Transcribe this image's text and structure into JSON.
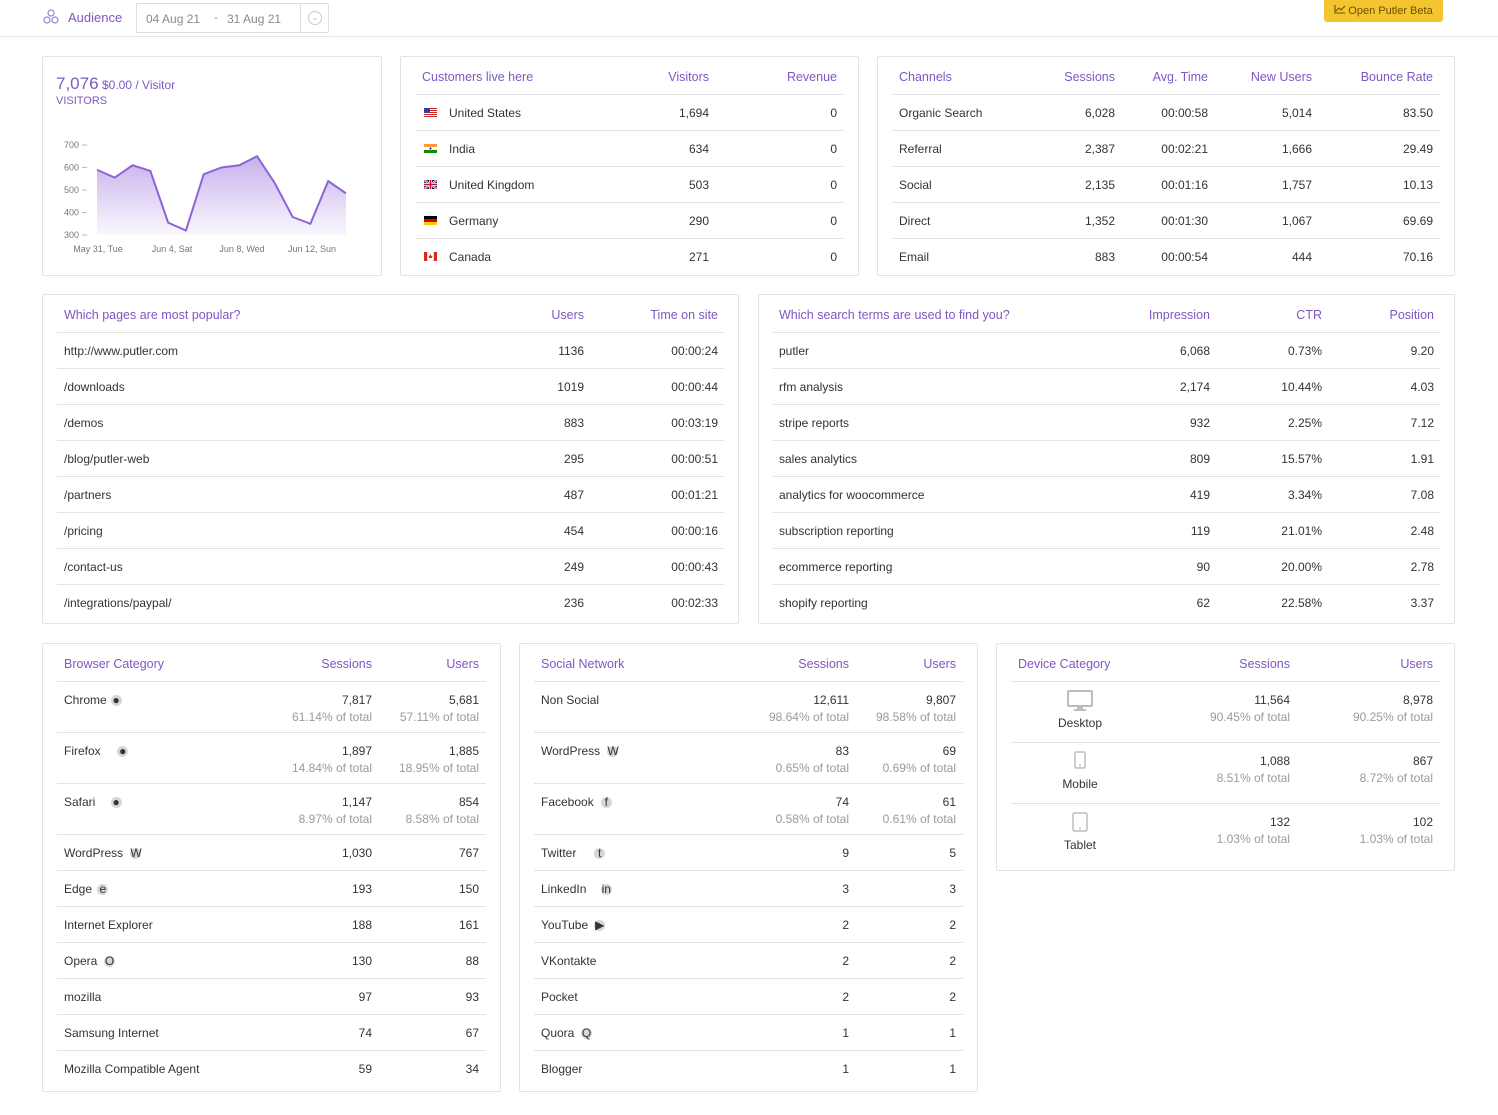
{
  "header": {
    "title": "Audience",
    "date_from": "04 Aug 21",
    "date_sep": "-",
    "date_to": "31 Aug 21",
    "beta_button": "Open Putler Beta"
  },
  "visitors": {
    "count": "7,076",
    "per_visitor": "$0.00 / Visitor",
    "label": "VISITORS",
    "y_ticks": [
      "700",
      "600",
      "500",
      "400",
      "300"
    ],
    "x_ticks": [
      "May 31, Tue",
      "Jun 4, Sat",
      "Jun 8, Wed",
      "Jun 12, Sun"
    ]
  },
  "chart_data": {
    "type": "area",
    "title": "",
    "ylim": [
      300,
      700
    ],
    "x_tick_labels": [
      "May 31, Tue",
      "Jun 4, Sat",
      "Jun 8, Wed",
      "Jun 12, Sun"
    ],
    "values": [
      590,
      555,
      610,
      585,
      355,
      320,
      570,
      600,
      610,
      650,
      530,
      380,
      350,
      540,
      485
    ],
    "color": "#8e63d8"
  },
  "countries": {
    "headers": [
      "Customers live here",
      "Visitors",
      "Revenue"
    ],
    "rows": [
      {
        "name": "United States",
        "visitors": "1,694",
        "revenue": "0",
        "flag": "us"
      },
      {
        "name": "India",
        "visitors": "634",
        "revenue": "0",
        "flag": "in"
      },
      {
        "name": "United Kingdom",
        "visitors": "503",
        "revenue": "0",
        "flag": "gb"
      },
      {
        "name": "Germany",
        "visitors": "290",
        "revenue": "0",
        "flag": "de"
      },
      {
        "name": "Canada",
        "visitors": "271",
        "revenue": "0",
        "flag": "ca"
      }
    ]
  },
  "channels": {
    "headers": [
      "Channels",
      "Sessions",
      "Avg. Time",
      "New Users",
      "Bounce Rate"
    ],
    "rows": [
      [
        "Organic Search",
        "6,028",
        "00:00:58",
        "5,014",
        "83.50"
      ],
      [
        "Referral",
        "2,387",
        "00:02:21",
        "1,666",
        "29.49"
      ],
      [
        "Social",
        "2,135",
        "00:01:16",
        "1,757",
        "10.13"
      ],
      [
        "Direct",
        "1,352",
        "00:01:30",
        "1,067",
        "69.69"
      ],
      [
        "Email",
        "883",
        "00:00:54",
        "444",
        "70.16"
      ]
    ]
  },
  "pages": {
    "headers": [
      "Which pages are most popular?",
      "Users",
      "Time on site"
    ],
    "rows": [
      [
        "http://www.putler.com",
        "1136",
        "00:00:24"
      ],
      [
        "/downloads",
        "1019",
        "00:00:44"
      ],
      [
        "/demos",
        "883",
        "00:03:19"
      ],
      [
        "/blog/putler-web",
        "295",
        "00:00:51"
      ],
      [
        "/partners",
        "487",
        "00:01:21"
      ],
      [
        "/pricing",
        "454",
        "00:00:16"
      ],
      [
        "/contact-us",
        "249",
        "00:00:43"
      ],
      [
        "/integrations/paypal/",
        "236",
        "00:02:33"
      ]
    ]
  },
  "search": {
    "headers": [
      "Which search terms are used to find you?",
      "Impression",
      "CTR",
      "Position"
    ],
    "rows": [
      [
        "putler",
        "6,068",
        "0.73%",
        "9.20"
      ],
      [
        "rfm analysis",
        "2,174",
        "10.44%",
        "4.03"
      ],
      [
        "stripe reports",
        "932",
        "2.25%",
        "7.12"
      ],
      [
        "sales analytics",
        "809",
        "15.57%",
        "1.91"
      ],
      [
        "analytics for woocommerce",
        "419",
        "3.34%",
        "7.08"
      ],
      [
        "subscription reporting",
        "119",
        "21.01%",
        "2.48"
      ],
      [
        "ecommerce reporting",
        "90",
        "20.00%",
        "2.78"
      ],
      [
        "shopify reporting",
        "62",
        "22.58%",
        "3.37"
      ]
    ]
  },
  "browsers": {
    "headers": [
      "Browser Category",
      "Sessions",
      "Users"
    ],
    "rows": [
      {
        "name": "Chrome",
        "icon": "chrome-icon",
        "sessions": "7,817",
        "users": "5,681",
        "sp": "61.14% of total",
        "up": "57.11% of total"
      },
      {
        "name": "Firefox",
        "icon": "firefox-icon",
        "sessions": "1,897",
        "users": "1,885",
        "sp": "14.84% of total",
        "up": "18.95% of total"
      },
      {
        "name": "Safari",
        "icon": "safari-icon",
        "sessions": "1,147",
        "users": "854",
        "sp": "8.97% of total",
        "up": "8.58% of total"
      },
      {
        "name": "WordPress",
        "icon": "wordpress-icon",
        "sessions": "1,030",
        "users": "767"
      },
      {
        "name": "Edge",
        "icon": "edge-icon",
        "sessions": "193",
        "users": "150"
      },
      {
        "name": "Internet Explorer",
        "icon": "",
        "sessions": "188",
        "users": "161"
      },
      {
        "name": "Opera",
        "icon": "opera-icon",
        "sessions": "130",
        "users": "88"
      },
      {
        "name": "mozilla",
        "icon": "",
        "sessions": "97",
        "users": "93"
      },
      {
        "name": "Samsung Internet",
        "icon": "",
        "sessions": "74",
        "users": "67"
      },
      {
        "name": "Mozilla Compatible Agent",
        "icon": "",
        "sessions": "59",
        "users": "34"
      }
    ]
  },
  "social": {
    "headers": [
      "Social Network",
      "Sessions",
      "Users"
    ],
    "rows": [
      {
        "name": "Non Social",
        "icon": "",
        "sessions": "12,611",
        "users": "9,807",
        "sp": "98.64% of total",
        "up": "98.58% of total"
      },
      {
        "name": "WordPress",
        "icon": "wordpress-icon",
        "sessions": "83",
        "users": "69",
        "sp": "0.65% of total",
        "up": "0.69% of total"
      },
      {
        "name": "Facebook",
        "icon": "facebook-icon",
        "sessions": "74",
        "users": "61",
        "sp": "0.58% of total",
        "up": "0.61% of total"
      },
      {
        "name": "Twitter",
        "icon": "twitter-icon",
        "sessions": "9",
        "users": "5"
      },
      {
        "name": "LinkedIn",
        "icon": "linkedin-icon",
        "sessions": "3",
        "users": "3"
      },
      {
        "name": "YouTube",
        "icon": "youtube-icon",
        "sessions": "2",
        "users": "2"
      },
      {
        "name": "VKontakte",
        "icon": "",
        "sessions": "2",
        "users": "2"
      },
      {
        "name": "Pocket",
        "icon": "",
        "sessions": "2",
        "users": "2"
      },
      {
        "name": "Quora",
        "icon": "quora-icon",
        "sessions": "1",
        "users": "1"
      },
      {
        "name": "Blogger",
        "icon": "",
        "sessions": "1",
        "users": "1"
      }
    ]
  },
  "devices": {
    "headers": [
      "Device Category",
      "Sessions",
      "Users"
    ],
    "rows": [
      {
        "name": "Desktop",
        "icon": "desktop-icon",
        "sessions": "11,564",
        "users": "8,978",
        "sp": "90.45% of total",
        "up": "90.25% of total"
      },
      {
        "name": "Mobile",
        "icon": "mobile-icon",
        "sessions": "1,088",
        "users": "867",
        "sp": "8.51% of total",
        "up": "8.72% of total"
      },
      {
        "name": "Tablet",
        "icon": "tablet-icon",
        "sessions": "132",
        "users": "102",
        "sp": "1.03% of total",
        "up": "1.03% of total"
      }
    ]
  }
}
